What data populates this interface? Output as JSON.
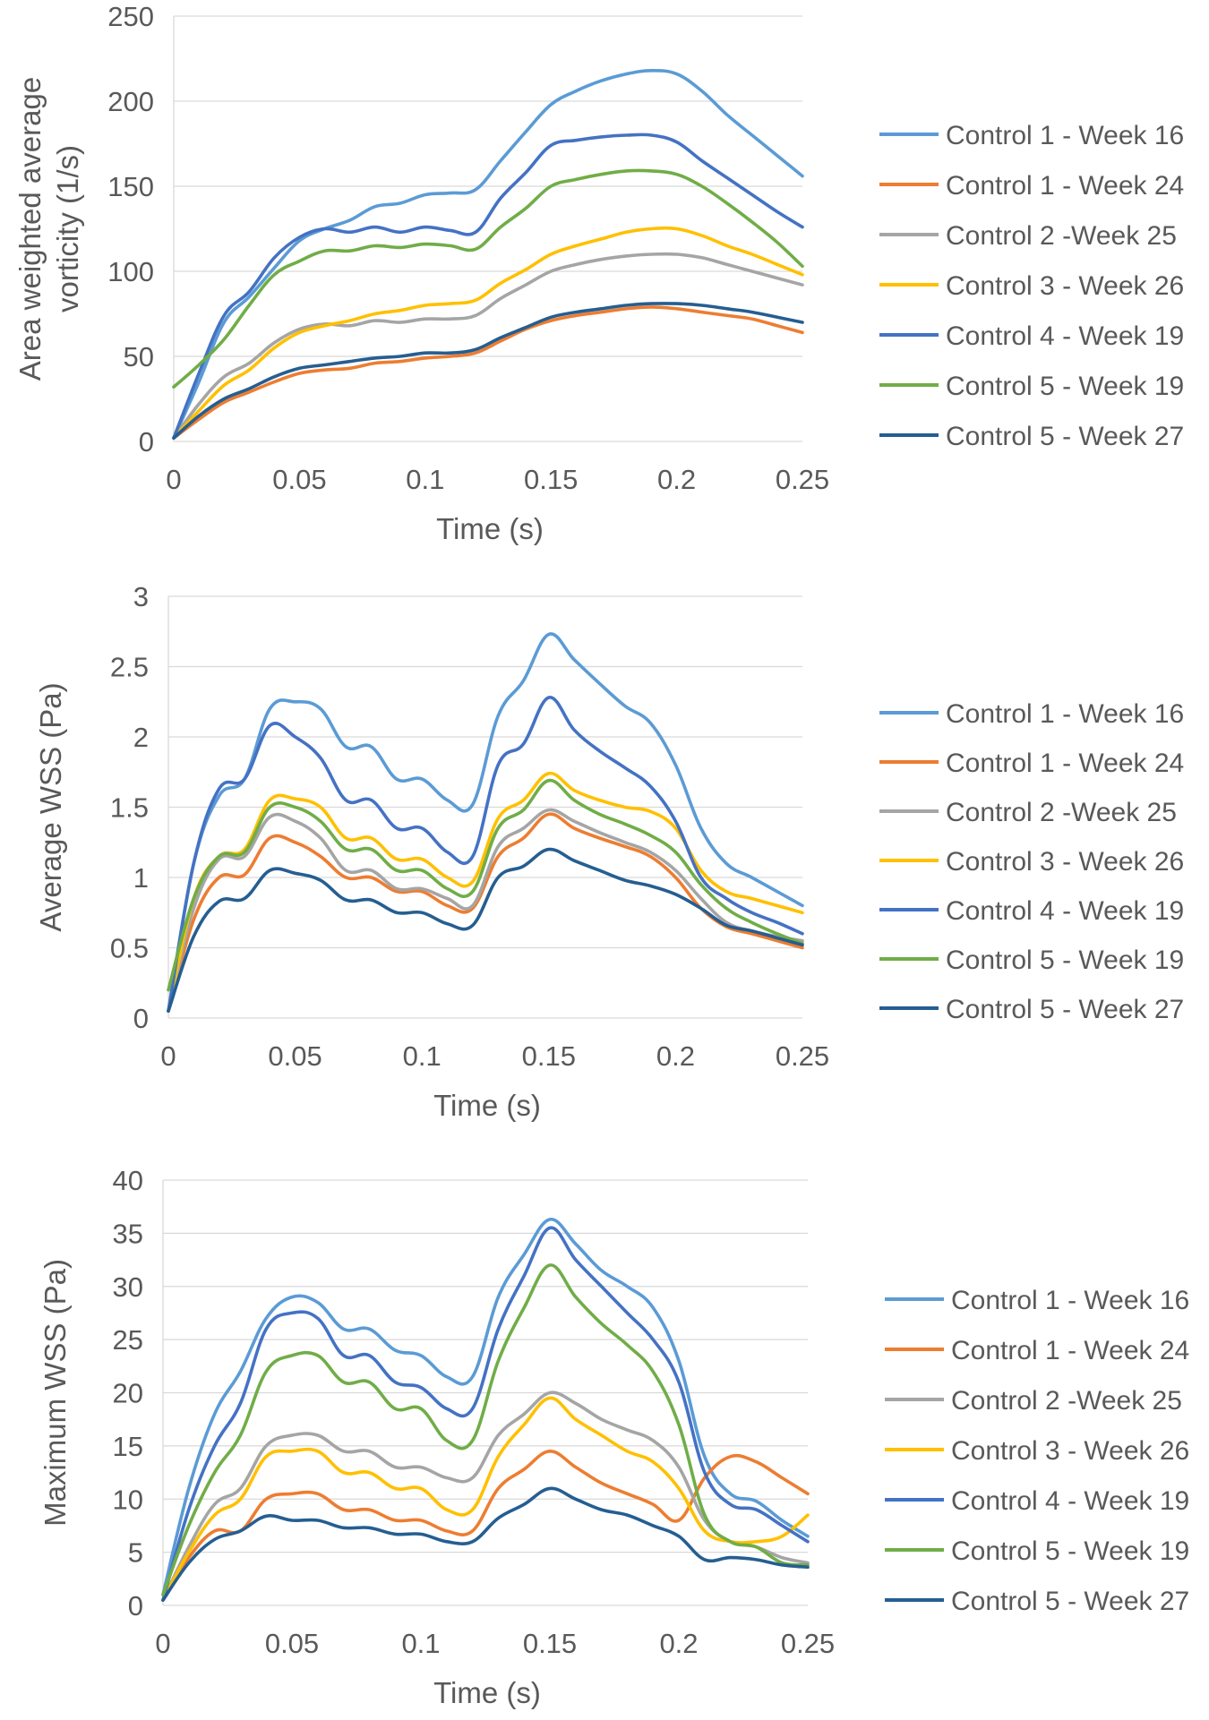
{
  "colors": {
    "series": [
      "#5B9BD5",
      "#ED7D31",
      "#A5A5A5",
      "#FFC000",
      "#4472C4",
      "#70AD47",
      "#255E91"
    ],
    "grid": "#D9D9D9",
    "axis_text": "#595959"
  },
  "chart_data": [
    {
      "type": "line",
      "title": "",
      "xlabel": "Time (s)",
      "ylabel": "Area weighted average vorticity (1/s)",
      "ylabel_lines": [
        "Area weighted average",
        "vorticity (1/s)"
      ],
      "xlim": [
        0,
        0.25
      ],
      "ylim": [
        0,
        250
      ],
      "xticks": [
        0,
        0.05,
        0.1,
        0.15,
        0.2,
        0.25
      ],
      "xtick_labels": [
        "0",
        "0.05",
        "0.1",
        "0.15",
        "0.2",
        "0.25"
      ],
      "yticks": [
        0,
        50,
        100,
        150,
        200,
        250
      ],
      "ytick_labels": [
        "0",
        "50",
        "100",
        "150",
        "200",
        "250"
      ],
      "grid": true,
      "legend_position": "right",
      "x": [
        0,
        0.01,
        0.02,
        0.03,
        0.04,
        0.05,
        0.06,
        0.07,
        0.08,
        0.09,
        0.1,
        0.11,
        0.12,
        0.13,
        0.14,
        0.15,
        0.16,
        0.17,
        0.18,
        0.19,
        0.2,
        0.21,
        0.22,
        0.23,
        0.24,
        0.25
      ],
      "series": [
        {
          "name": "Control 1 - Week 16",
          "values": [
            2,
            35,
            70,
            85,
            102,
            118,
            125,
            130,
            138,
            140,
            145,
            146,
            148,
            165,
            182,
            198,
            206,
            212,
            216,
            218,
            216,
            206,
            192,
            180,
            168,
            156
          ]
        },
        {
          "name": "Control 1 - Week 24",
          "values": [
            2,
            13,
            23,
            29,
            35,
            40,
            42,
            43,
            46,
            47,
            49,
            50,
            52,
            59,
            66,
            71,
            74,
            76,
            78,
            79,
            78,
            76,
            74,
            72,
            68,
            64
          ]
        },
        {
          "name": "Control 2 -Week 25",
          "values": [
            2,
            22,
            38,
            46,
            58,
            66,
            69,
            68,
            71,
            70,
            72,
            72,
            74,
            84,
            92,
            100,
            104,
            107,
            109,
            110,
            110,
            108,
            104,
            100,
            96,
            92
          ]
        },
        {
          "name": "Control 3 - Week 26",
          "values": [
            2,
            18,
            33,
            42,
            55,
            64,
            68,
            71,
            75,
            77,
            80,
            81,
            83,
            93,
            101,
            110,
            115,
            119,
            123,
            125,
            125,
            121,
            115,
            110,
            104,
            98
          ]
        },
        {
          "name": "Control 4 - Week 19",
          "values": [
            2,
            40,
            74,
            88,
            108,
            120,
            125,
            123,
            126,
            123,
            126,
            124,
            123,
            143,
            158,
            174,
            177,
            179,
            180,
            180,
            176,
            165,
            155,
            145,
            135,
            126
          ]
        },
        {
          "name": "Control 5 - Week 19",
          "values": [
            32,
            45,
            60,
            80,
            98,
            106,
            112,
            112,
            115,
            114,
            116,
            115,
            113,
            126,
            137,
            150,
            154,
            157,
            159,
            159,
            157,
            150,
            140,
            129,
            117,
            103
          ]
        },
        {
          "name": "Control 5 - Week 27",
          "values": [
            2,
            15,
            25,
            31,
            38,
            43,
            45,
            47,
            49,
            50,
            52,
            52,
            54,
            61,
            67,
            73,
            76,
            78,
            80,
            81,
            81,
            80,
            78,
            76,
            73,
            70
          ]
        }
      ]
    },
    {
      "type": "line",
      "title": "",
      "xlabel": "Time (s)",
      "ylabel": "Average WSS (Pa)",
      "ylabel_lines": [
        "Average WSS (Pa)"
      ],
      "xlim": [
        0,
        0.25
      ],
      "ylim": [
        0,
        3
      ],
      "xticks": [
        0,
        0.05,
        0.1,
        0.15,
        0.2,
        0.25
      ],
      "xtick_labels": [
        "0",
        "0.05",
        "0.1",
        "0.15",
        "0.2",
        "0.25"
      ],
      "yticks": [
        0,
        0.5,
        1,
        1.5,
        2,
        2.5,
        3
      ],
      "ytick_labels": [
        "0",
        "0.5",
        "1",
        "1.5",
        "2",
        "2.5",
        "3"
      ],
      "grid": true,
      "legend_position": "right",
      "x": [
        0,
        0.01,
        0.02,
        0.03,
        0.04,
        0.05,
        0.06,
        0.07,
        0.08,
        0.09,
        0.1,
        0.11,
        0.12,
        0.13,
        0.14,
        0.15,
        0.16,
        0.17,
        0.18,
        0.19,
        0.2,
        0.21,
        0.22,
        0.23,
        0.24,
        0.25
      ],
      "series": [
        {
          "name": "Control 1 - Week 16",
          "values": [
            0.05,
            1.1,
            1.58,
            1.7,
            2.2,
            2.25,
            2.2,
            1.93,
            1.93,
            1.7,
            1.7,
            1.55,
            1.52,
            2.15,
            2.4,
            2.73,
            2.55,
            2.38,
            2.22,
            2.1,
            1.8,
            1.35,
            1.1,
            1.0,
            0.9,
            0.8
          ]
        },
        {
          "name": "Control 1 - Week 24",
          "values": [
            0.05,
            0.7,
            1.0,
            1.02,
            1.28,
            1.25,
            1.15,
            1.0,
            1.0,
            0.9,
            0.9,
            0.8,
            0.78,
            1.15,
            1.28,
            1.45,
            1.35,
            1.28,
            1.22,
            1.15,
            1.0,
            0.78,
            0.65,
            0.6,
            0.55,
            0.5
          ]
        },
        {
          "name": "Control 2 -Week 25",
          "values": [
            0.05,
            0.78,
            1.13,
            1.15,
            1.43,
            1.4,
            1.28,
            1.05,
            1.05,
            0.92,
            0.92,
            0.85,
            0.8,
            1.22,
            1.35,
            1.48,
            1.4,
            1.32,
            1.25,
            1.18,
            1.05,
            0.85,
            0.68,
            0.62,
            0.58,
            0.55
          ]
        },
        {
          "name": "Control 3 - Week 26",
          "values": [
            0.05,
            0.85,
            1.15,
            1.2,
            1.55,
            1.56,
            1.5,
            1.28,
            1.28,
            1.13,
            1.13,
            1.0,
            0.97,
            1.42,
            1.55,
            1.74,
            1.62,
            1.55,
            1.5,
            1.47,
            1.35,
            1.05,
            0.9,
            0.85,
            0.8,
            0.75
          ]
        },
        {
          "name": "Control 4 - Week 19",
          "values": [
            0.05,
            1.1,
            1.63,
            1.7,
            2.08,
            2.0,
            1.85,
            1.55,
            1.55,
            1.35,
            1.35,
            1.18,
            1.15,
            1.8,
            1.95,
            2.28,
            2.05,
            1.9,
            1.78,
            1.65,
            1.4,
            1.0,
            0.85,
            0.75,
            0.68,
            0.6
          ]
        },
        {
          "name": "Control 5 - Week 19",
          "values": [
            0.2,
            0.85,
            1.15,
            1.18,
            1.5,
            1.5,
            1.4,
            1.2,
            1.2,
            1.05,
            1.05,
            0.92,
            0.9,
            1.35,
            1.48,
            1.69,
            1.55,
            1.45,
            1.38,
            1.3,
            1.18,
            0.95,
            0.78,
            0.68,
            0.6,
            0.53
          ]
        },
        {
          "name": "Control 5 - Week 27",
          "values": [
            0.05,
            0.58,
            0.83,
            0.85,
            1.05,
            1.03,
            0.98,
            0.84,
            0.84,
            0.75,
            0.75,
            0.67,
            0.66,
            1.0,
            1.08,
            1.2,
            1.12,
            1.05,
            0.98,
            0.94,
            0.88,
            0.78,
            0.66,
            0.62,
            0.57,
            0.52
          ]
        }
      ]
    },
    {
      "type": "line",
      "title": "",
      "xlabel": "Time (s)",
      "ylabel": "Maximum WSS (Pa)",
      "ylabel_lines": [
        "Maximum WSS (Pa)"
      ],
      "xlim": [
        0,
        0.25
      ],
      "ylim": [
        0,
        40
      ],
      "xticks": [
        0,
        0.05,
        0.1,
        0.15,
        0.2,
        0.25
      ],
      "xtick_labels": [
        "0",
        "0.05",
        "0.1",
        "0.15",
        "0.2",
        "0.25"
      ],
      "yticks": [
        0,
        5,
        10,
        15,
        20,
        25,
        30,
        35,
        40
      ],
      "ytick_labels": [
        "0",
        "5",
        "10",
        "15",
        "20",
        "25",
        "30",
        "35",
        "40"
      ],
      "grid": true,
      "legend_position": "right",
      "x": [
        0,
        0.01,
        0.02,
        0.03,
        0.04,
        0.05,
        0.06,
        0.07,
        0.08,
        0.09,
        0.1,
        0.11,
        0.12,
        0.13,
        0.14,
        0.15,
        0.16,
        0.17,
        0.18,
        0.19,
        0.2,
        0.21,
        0.22,
        0.23,
        0.24,
        0.25
      ],
      "series": [
        {
          "name": "Control 1 - Week 16",
          "values": [
            1,
            11,
            18,
            22,
            27,
            29,
            28.5,
            26,
            26,
            24,
            23.5,
            21.5,
            21.5,
            29,
            33,
            36.3,
            34,
            31.5,
            30,
            28,
            23,
            14,
            10.5,
            9.8,
            8,
            6.5
          ]
        },
        {
          "name": "Control 1 - Week 24",
          "values": [
            0.5,
            4.5,
            7,
            7,
            10,
            10.5,
            10.5,
            9,
            9,
            8,
            8,
            7,
            7,
            11,
            12.8,
            14.5,
            13,
            11.5,
            10.5,
            9.5,
            8,
            12,
            14,
            13.5,
            12,
            10.5
          ]
        },
        {
          "name": "Control 2 -Week 25",
          "values": [
            0.5,
            5.5,
            9.5,
            11,
            15,
            16,
            16,
            14.5,
            14.5,
            13,
            13,
            12,
            12,
            16,
            18,
            20,
            19,
            17.5,
            16.5,
            15.5,
            13,
            8,
            6,
            5.5,
            4.5,
            4
          ]
        },
        {
          "name": "Control 3 - Week 26",
          "values": [
            0.5,
            5,
            8.5,
            10,
            14,
            14.5,
            14.5,
            12.5,
            12.5,
            11,
            11,
            9,
            9,
            14,
            17,
            19.5,
            17.5,
            16,
            14.5,
            13.5,
            11,
            7,
            6,
            6,
            6.5,
            8.5
          ]
        },
        {
          "name": "Control 4 - Week 19",
          "values": [
            0.5,
            9,
            15,
            19,
            26,
            27.5,
            27,
            23.5,
            23.5,
            21,
            20.5,
            18.5,
            18.5,
            26,
            31,
            35.5,
            32.5,
            30,
            27.5,
            25,
            21,
            12.5,
            9.5,
            9,
            7.5,
            6
          ]
        },
        {
          "name": "Control 5 - Week 19",
          "values": [
            1,
            7.5,
            12.5,
            16,
            22,
            23.5,
            23.5,
            21,
            21,
            18.5,
            18.5,
            15.5,
            15.5,
            23,
            28,
            32,
            29,
            26.5,
            24.5,
            22,
            17,
            8.5,
            6,
            5.5,
            4,
            3.8
          ]
        },
        {
          "name": "Control 5 - Week 27",
          "values": [
            0.5,
            4,
            6.2,
            7,
            8.4,
            8,
            8,
            7.3,
            7.3,
            6.7,
            6.7,
            6,
            6,
            8.2,
            9.5,
            11,
            10,
            9,
            8.5,
            7.5,
            6.5,
            4.3,
            4.5,
            4.3,
            3.8,
            3.6
          ]
        }
      ]
    }
  ]
}
